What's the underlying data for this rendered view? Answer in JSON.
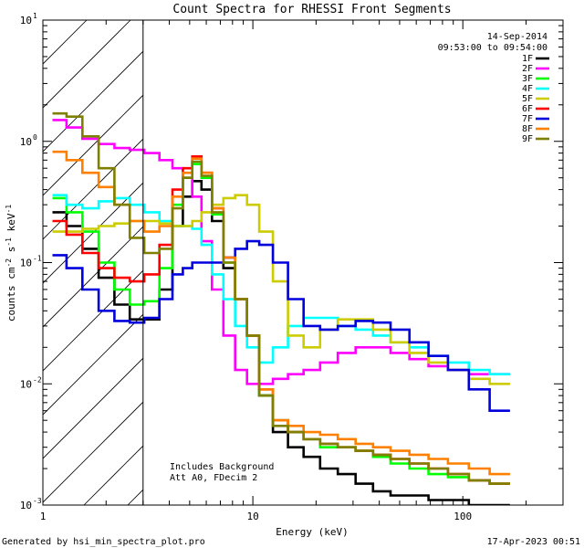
{
  "chart_data": {
    "type": "line",
    "title": "Count Spectra for RHESSI Front Segments",
    "xlabel": "Energy (keV)",
    "ylabel_parts": [
      "counts cm",
      "-2",
      " s",
      "-1",
      " keV",
      "-1"
    ],
    "xscale": "log",
    "yscale": "log",
    "xlim": [
      1,
      300
    ],
    "ylim": [
      0.001,
      10
    ],
    "x_tick_labels": [
      {
        "value": 1,
        "label": "1"
      },
      {
        "value": 10,
        "label": "10"
      },
      {
        "value": 100,
        "label": "100"
      }
    ],
    "y_tick_labels": [
      {
        "value": 10,
        "base": "10",
        "exp": "1"
      },
      {
        "value": 1,
        "base": "10",
        "exp": "0"
      },
      {
        "value": 0.1,
        "base": "10",
        "exp": "-1"
      },
      {
        "value": 0.01,
        "base": "10",
        "exp": "-2"
      },
      {
        "value": 0.001,
        "base": "10",
        "exp": "-3"
      }
    ],
    "hatched_region": [
      1,
      3
    ],
    "legend": {
      "placement": "top-right",
      "date": "14-Sep-2014",
      "time_range": "09:53:00 to 09:54:00"
    },
    "annotations": [
      "Includes Background",
      "Att A0, FDecim 2"
    ],
    "footer_left": "Generated by hsi_min_spectra_plot.pro",
    "footer_right": "17-Apr-2023 00:51",
    "series": [
      {
        "name": "1F",
        "color": "#000000",
        "values": [
          0.26,
          0.2,
          0.13,
          0.075,
          0.045,
          0.034,
          0.034,
          0.06,
          0.2,
          0.35,
          0.47,
          0.4,
          0.22,
          0.09,
          0.05,
          0.025,
          0.008,
          0.004,
          0.003,
          0.0025,
          0.002,
          0.0018,
          0.0015,
          0.0013,
          0.0012,
          0.0012,
          0.0011,
          0.0011,
          0.001,
          0.001
        ]
      },
      {
        "name": "2F",
        "color": "#ff00ff",
        "values": [
          1.5,
          1.3,
          1.05,
          0.95,
          0.88,
          0.85,
          0.8,
          0.7,
          0.6,
          0.5,
          0.35,
          0.15,
          0.06,
          0.025,
          0.013,
          0.01,
          0.01,
          0.011,
          0.012,
          0.013,
          0.015,
          0.018,
          0.02,
          0.02,
          0.018,
          0.016,
          0.014,
          0.013,
          0.012,
          0.012
        ]
      },
      {
        "name": "3F",
        "color": "#00ff00",
        "values": [
          0.34,
          0.26,
          0.18,
          0.1,
          0.06,
          0.045,
          0.048,
          0.09,
          0.3,
          0.5,
          0.65,
          0.5,
          0.25,
          0.1,
          0.05,
          0.025,
          0.008,
          0.005,
          0.004,
          0.0035,
          0.003,
          0.003,
          0.0028,
          0.0025,
          0.0022,
          0.002,
          0.0018,
          0.0017,
          0.0016,
          0.0015
        ]
      },
      {
        "name": "4F",
        "color": "#00ffff",
        "values": [
          0.36,
          0.3,
          0.28,
          0.32,
          0.34,
          0.3,
          0.26,
          0.22,
          0.2,
          0.2,
          0.19,
          0.14,
          0.08,
          0.05,
          0.03,
          0.02,
          0.015,
          0.02,
          0.03,
          0.035,
          0.035,
          0.03,
          0.028,
          0.025,
          0.022,
          0.02,
          0.017,
          0.015,
          0.013,
          0.012
        ]
      },
      {
        "name": "5F",
        "color": "#cccc00",
        "values": [
          0.18,
          0.18,
          0.19,
          0.2,
          0.21,
          0.22,
          0.22,
          0.21,
          0.2,
          0.2,
          0.22,
          0.26,
          0.3,
          0.34,
          0.36,
          0.3,
          0.18,
          0.07,
          0.025,
          0.02,
          0.028,
          0.034,
          0.034,
          0.028,
          0.022,
          0.018,
          0.015,
          0.013,
          0.011,
          0.01
        ]
      },
      {
        "name": "6F",
        "color": "#ff0000",
        "values": [
          0.22,
          0.17,
          0.12,
          0.09,
          0.075,
          0.07,
          0.08,
          0.14,
          0.4,
          0.6,
          0.75,
          0.55,
          0.28,
          0.11,
          0.05,
          0.025,
          0.009,
          0.005,
          0.004,
          0.0035,
          0.0032,
          0.003,
          0.0028,
          0.0026,
          0.0024,
          0.0022,
          0.002,
          0.0018,
          0.0016,
          0.0015
        ]
      },
      {
        "name": "7F",
        "color": "#0000dd",
        "values": [
          0.115,
          0.09,
          0.06,
          0.04,
          0.033,
          0.032,
          0.035,
          0.05,
          0.08,
          0.09,
          0.1,
          0.1,
          0.1,
          0.11,
          0.13,
          0.15,
          0.14,
          0.1,
          0.05,
          0.03,
          0.028,
          0.03,
          0.033,
          0.032,
          0.028,
          0.022,
          0.017,
          0.013,
          0.009,
          0.006
        ]
      },
      {
        "name": "8F",
        "color": "#ff8000",
        "values": [
          0.82,
          0.7,
          0.55,
          0.42,
          0.3,
          0.22,
          0.18,
          0.2,
          0.35,
          0.55,
          0.72,
          0.55,
          0.28,
          0.11,
          0.05,
          0.025,
          0.009,
          0.005,
          0.0045,
          0.004,
          0.0038,
          0.0035,
          0.0032,
          0.003,
          0.0028,
          0.0026,
          0.0024,
          0.0022,
          0.002,
          0.0018
        ]
      },
      {
        "name": "9F",
        "color": "#808000",
        "values": [
          1.7,
          1.6,
          1.1,
          0.6,
          0.3,
          0.16,
          0.12,
          0.13,
          0.28,
          0.5,
          0.68,
          0.52,
          0.26,
          0.1,
          0.05,
          0.025,
          0.008,
          0.0045,
          0.004,
          0.0035,
          0.0032,
          0.003,
          0.0028,
          0.0026,
          0.0024,
          0.0022,
          0.002,
          0.0018,
          0.0016,
          0.0015
        ]
      }
    ],
    "energy": [
      1.2,
      1.4,
      1.7,
      2.0,
      2.4,
      2.8,
      3.3,
      3.9,
      4.4,
      4.9,
      5.4,
      6.0,
      6.8,
      7.7,
      8.8,
      10,
      11.5,
      13.5,
      16,
      19,
      23,
      28,
      34,
      41,
      50,
      62,
      76,
      95,
      120,
      150
    ]
  }
}
